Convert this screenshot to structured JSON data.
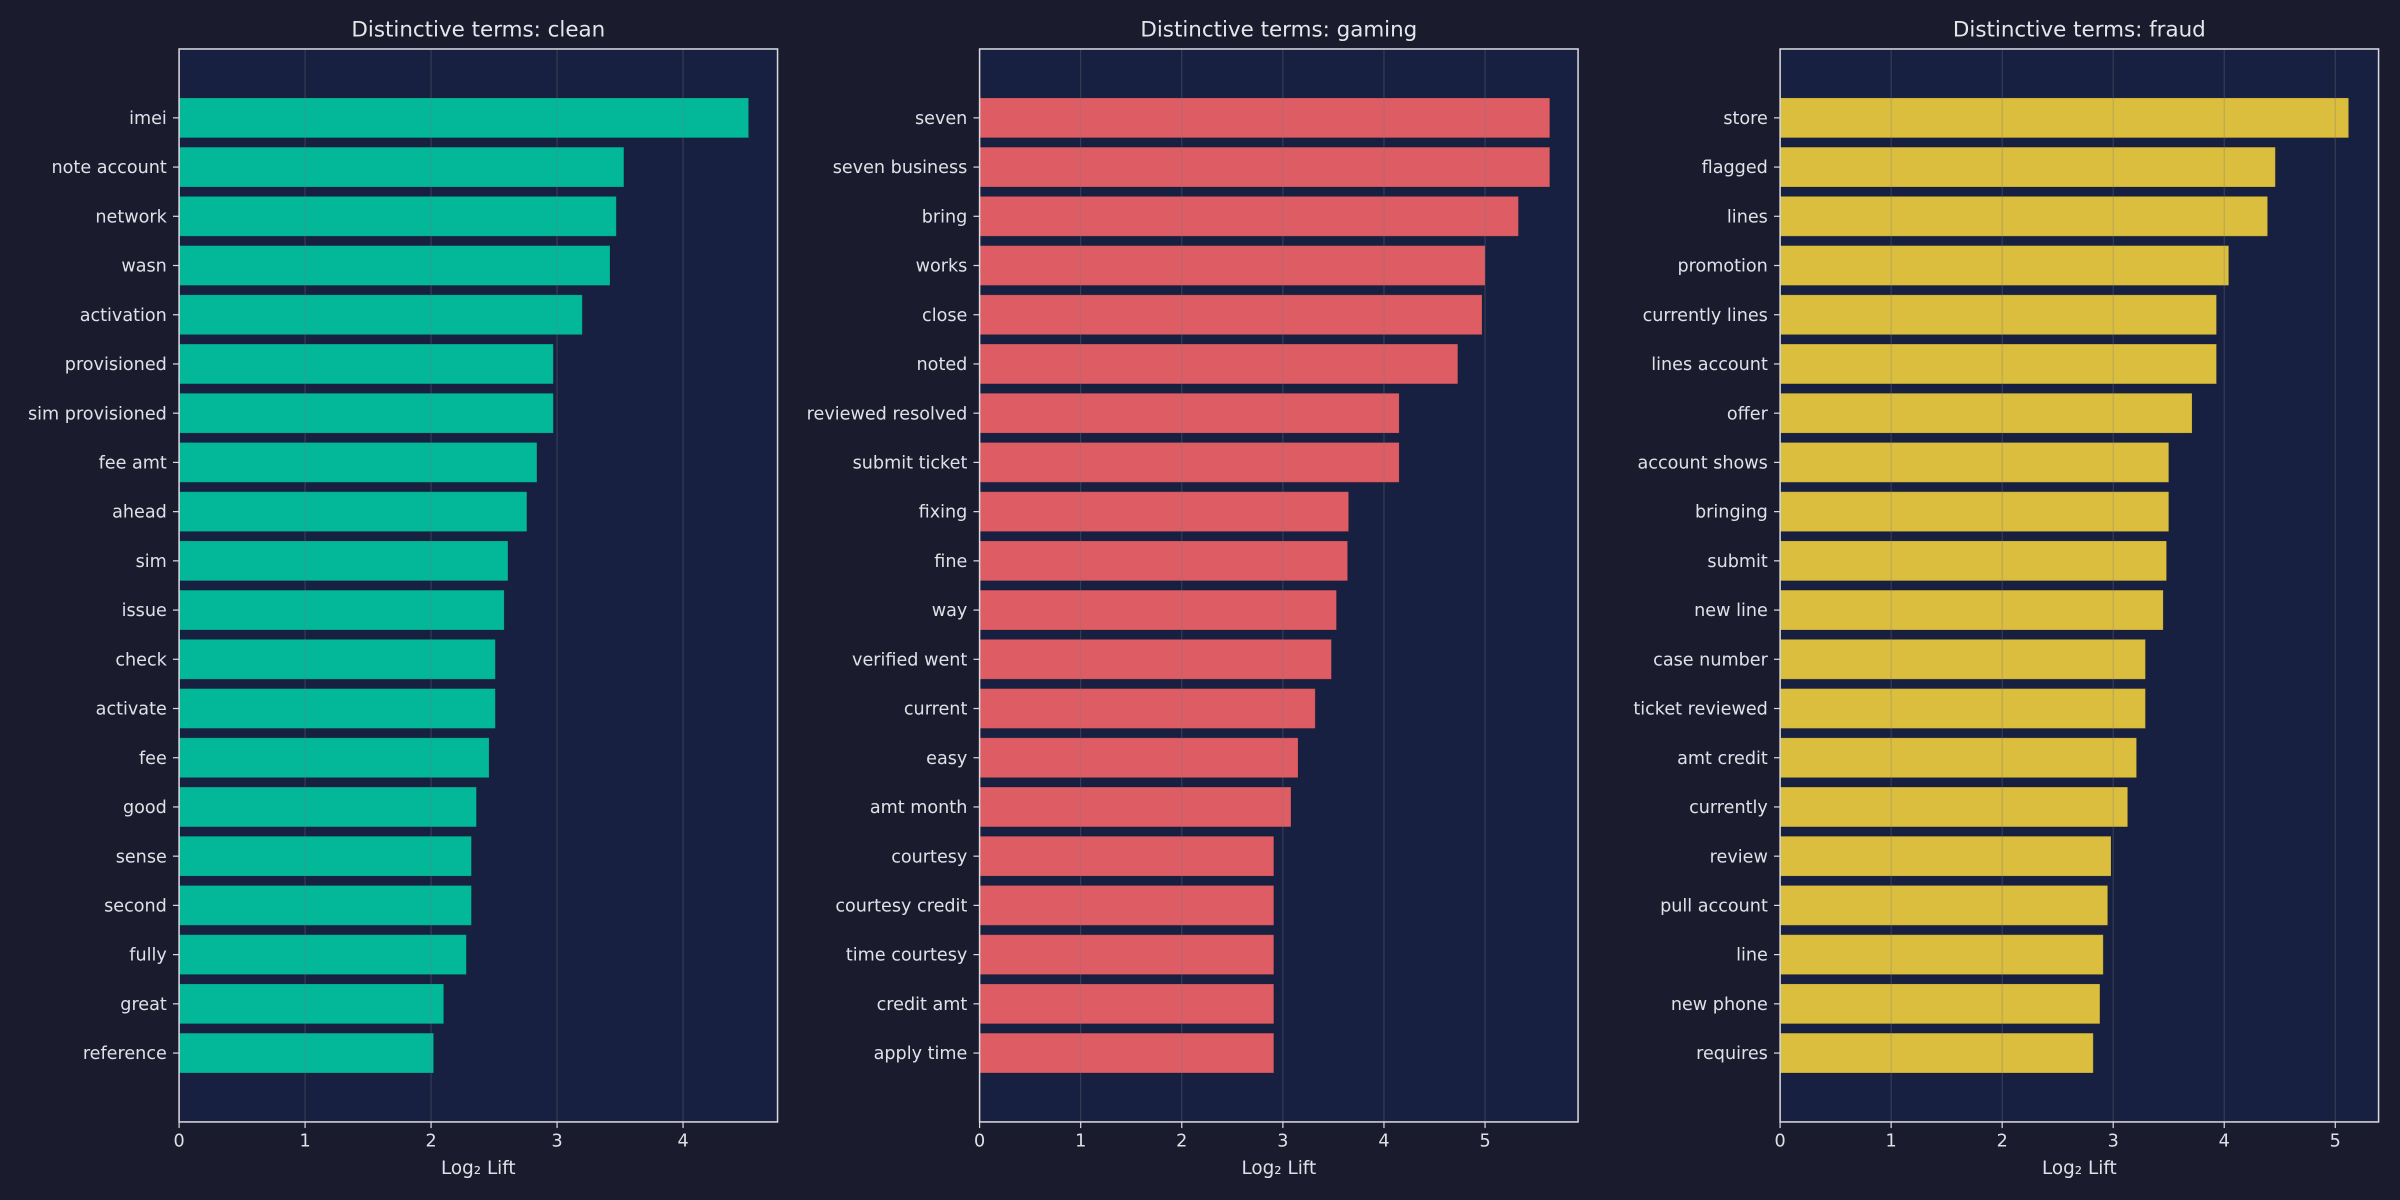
{
  "chart_data": [
    {
      "type": "bar",
      "orientation": "horizontal",
      "title": "Distinctive terms: clean",
      "xlabel": "Log₂ Lift",
      "ylabel": "",
      "xlim": [
        0,
        4.75
      ],
      "xticks": [
        0,
        1,
        2,
        3,
        4
      ],
      "grid": "x",
      "color": "#02b899",
      "categories": [
        "imei",
        "note account",
        "network",
        "wasn",
        "activation",
        "provisioned",
        "sim provisioned",
        "fee amt",
        "ahead",
        "sim",
        "issue",
        "check",
        "activate",
        "fee",
        "good",
        "sense",
        "second",
        "fully",
        "great",
        "reference"
      ],
      "values": [
        4.52,
        3.53,
        3.47,
        3.42,
        3.2,
        2.97,
        2.97,
        2.84,
        2.76,
        2.61,
        2.58,
        2.51,
        2.51,
        2.46,
        2.36,
        2.32,
        2.32,
        2.28,
        2.1,
        2.02
      ]
    },
    {
      "type": "bar",
      "orientation": "horizontal",
      "title": "Distinctive terms: gaming",
      "xlabel": "Log₂ Lift",
      "ylabel": "",
      "xlim": [
        0,
        5.92
      ],
      "xticks": [
        0,
        1,
        2,
        3,
        4,
        5
      ],
      "grid": "x",
      "color": "#de5c64",
      "categories": [
        "seven",
        "seven business",
        "bring",
        "works",
        "close",
        "noted",
        "reviewed resolved",
        "submit ticket",
        "fixing",
        "fine",
        "way",
        "verified went",
        "current",
        "easy",
        "amt month",
        "courtesy",
        "courtesy credit",
        "time courtesy",
        "credit amt",
        "apply time"
      ],
      "values": [
        5.64,
        5.64,
        5.33,
        5.0,
        4.97,
        4.73,
        4.15,
        4.15,
        3.65,
        3.64,
        3.53,
        3.48,
        3.32,
        3.15,
        3.08,
        2.91,
        2.91,
        2.91,
        2.91,
        2.91
      ]
    },
    {
      "type": "bar",
      "orientation": "horizontal",
      "title": "Distinctive terms: fraud",
      "xlabel": "Log₂ Lift",
      "ylabel": "",
      "xlim": [
        0,
        5.39
      ],
      "xticks": [
        0,
        1,
        2,
        3,
        4,
        5
      ],
      "grid": "x",
      "color": "#dbbe3d",
      "categories": [
        "store",
        "flagged",
        "lines",
        "promotion",
        "currently lines",
        "lines account",
        "offer",
        "account shows",
        "bringing",
        "submit",
        "new line",
        "case number",
        "ticket reviewed",
        "amt credit",
        "currently",
        "review",
        "pull account",
        "line",
        "new phone",
        "requires"
      ],
      "values": [
        5.12,
        4.46,
        4.39,
        4.04,
        3.93,
        3.93,
        3.71,
        3.5,
        3.5,
        3.48,
        3.45,
        3.29,
        3.29,
        3.21,
        3.13,
        2.98,
        2.95,
        2.91,
        2.88,
        2.82
      ]
    }
  ],
  "colors": {
    "background": "#1b1b2e",
    "plot_background": "#172040",
    "text": "#e0e0e6",
    "axis": "#d8d8de"
  }
}
